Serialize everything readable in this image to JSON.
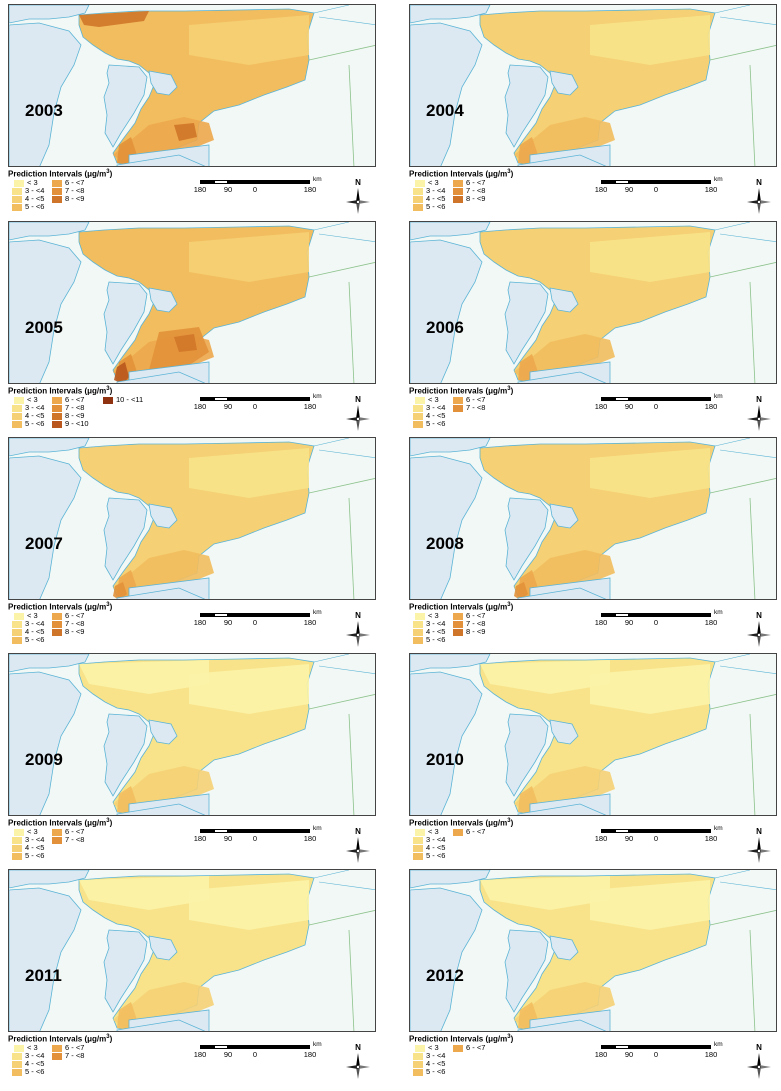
{
  "legend_title": "Prediction Intervals (μg/m",
  "legend_title_sup": "3",
  "legend_title_close": ")",
  "scale": {
    "labels": [
      "180",
      "90",
      "0",
      "180"
    ],
    "unit": "km"
  },
  "compass_label": "N",
  "classes": {
    "lt3": {
      "label": "< 3",
      "color": "#fbf3a7"
    },
    "3-4": {
      "label": "3 - <4",
      "color": "#f8e38a"
    },
    "4-5": {
      "label": "4 - <5",
      "color": "#f5d074"
    },
    "5-6": {
      "label": "5 - <6",
      "color": "#f2bd5e"
    },
    "6-7": {
      "label": "6 - <7",
      "color": "#eda74c"
    },
    "7-8": {
      "label": "7 - <8",
      "color": "#e2913a"
    },
    "8-9": {
      "label": "8 - <9",
      "color": "#cf7529"
    },
    "9-10": {
      "label": "9 - <10",
      "color": "#b8561d"
    },
    "10-11": {
      "label": "10 - <11",
      "color": "#8f3210"
    }
  },
  "colors": {
    "water": "#dde9f2",
    "land": "#f2f8f5",
    "shore": "#5bb4d6",
    "border": "#8cc28c"
  },
  "panels": [
    {
      "year": "2003",
      "base": "5-6",
      "classes": [
        "lt3",
        "3-4",
        "4-5",
        "5-6",
        "6-7",
        "7-8",
        "8-9"
      ]
    },
    {
      "year": "2004",
      "base": "4-5",
      "classes": [
        "lt3",
        "3-4",
        "4-5",
        "5-6",
        "6-7",
        "7-8",
        "8-9"
      ]
    },
    {
      "year": "2005",
      "base": "5-6",
      "classes": [
        "lt3",
        "3-4",
        "4-5",
        "5-6",
        "6-7",
        "7-8",
        "8-9",
        "9-10",
        "10-11"
      ]
    },
    {
      "year": "2006",
      "base": "4-5",
      "classes": [
        "lt3",
        "3-4",
        "4-5",
        "5-6",
        "6-7",
        "7-8"
      ]
    },
    {
      "year": "2007",
      "base": "4-5",
      "classes": [
        "lt3",
        "3-4",
        "4-5",
        "5-6",
        "6-7",
        "7-8",
        "8-9"
      ]
    },
    {
      "year": "2008",
      "base": "4-5",
      "classes": [
        "lt3",
        "3-4",
        "4-5",
        "5-6",
        "6-7",
        "7-8",
        "8-9"
      ]
    },
    {
      "year": "2009",
      "base": "3-4",
      "classes": [
        "lt3",
        "3-4",
        "4-5",
        "5-6",
        "6-7",
        "7-8"
      ]
    },
    {
      "year": "2010",
      "base": "3-4",
      "classes": [
        "lt3",
        "3-4",
        "4-5",
        "5-6",
        "6-7"
      ]
    },
    {
      "year": "2011",
      "base": "3-4",
      "classes": [
        "lt3",
        "3-4",
        "4-5",
        "5-6",
        "6-7",
        "7-8"
      ]
    },
    {
      "year": "2012",
      "base": "3-4",
      "classes": [
        "lt3",
        "3-4",
        "4-5",
        "5-6",
        "6-7"
      ]
    }
  ]
}
